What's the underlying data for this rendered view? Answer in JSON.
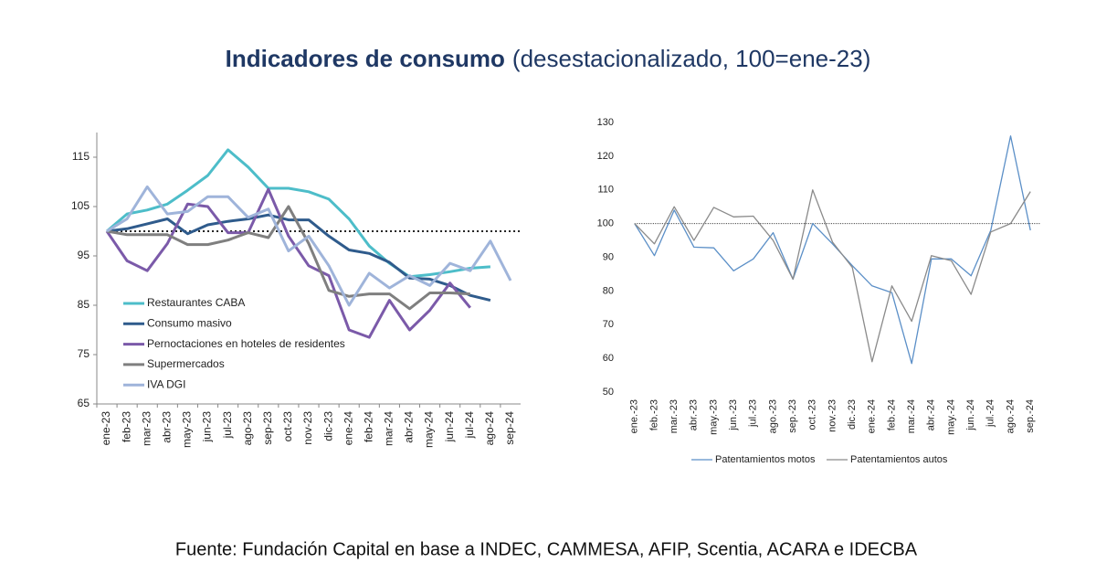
{
  "header": {
    "title": "Indicadores de consumo",
    "subtitle": "(desestacionalizado, 100=ene-23)"
  },
  "source": "Fuente: Fundación Capital en base a INDEC, CAMMESA, AFIP, Scentia, ACARA e IDECBA",
  "chart_data": [
    {
      "type": "line",
      "categories": [
        "ene-23",
        "feb-23",
        "mar-23",
        "abr-23",
        "may-23",
        "jun-23",
        "jul-23",
        "ago-23",
        "sep-23",
        "oct-23",
        "nov-23",
        "dic-23",
        "ene-24",
        "feb-24",
        "mar-24",
        "abr-24",
        "may-24",
        "jun-24",
        "jul-24",
        "ago-24",
        "sep-24"
      ],
      "series": [
        {
          "name": "Restaurantes CABA",
          "color": "#4dbdc9",
          "values": [
            100,
            103.5,
            104.3,
            105.5,
            108.3,
            111.3,
            116.5,
            113,
            108.7,
            108.7,
            108,
            106.5,
            102.5,
            97,
            93.5,
            90.8,
            91.2,
            91.8,
            92.5,
            92.8,
            null
          ]
        },
        {
          "name": "Consumo masivo",
          "color": "#2f5b8c",
          "values": [
            100,
            100.5,
            101.5,
            102.5,
            99.5,
            101.3,
            102,
            102.5,
            103.3,
            102.3,
            102.3,
            99,
            96.2,
            95.5,
            93.7,
            90.5,
            90.3,
            89,
            87,
            86,
            null
          ]
        },
        {
          "name": "Pernoctaciones en hoteles de residentes",
          "color": "#7b5aa9",
          "values": [
            100,
            94,
            92,
            97.5,
            105.5,
            105,
            99.7,
            99.7,
            108.5,
            99,
            93,
            91,
            80,
            78.5,
            86,
            80,
            84,
            89.5,
            84.5,
            null,
            null
          ]
        },
        {
          "name": "Supermercados",
          "color": "#7f7f7f",
          "values": [
            100,
            99.3,
            99.3,
            99.3,
            97.3,
            97.3,
            98.2,
            99.7,
            98.7,
            105,
            97.5,
            88,
            86.8,
            87.3,
            87.3,
            84.3,
            87.5,
            87.5,
            87.3,
            null,
            null
          ]
        },
        {
          "name": "IVA DGI",
          "color": "#9fb4da",
          "values": [
            100,
            102.5,
            109,
            103.5,
            104,
            107,
            107,
            102.8,
            104.5,
            96,
            99,
            93,
            85,
            91.5,
            88.5,
            91,
            89,
            93.5,
            92,
            98,
            90
          ]
        }
      ],
      "reference_line": 100,
      "ylim": [
        65,
        120
      ],
      "yticks": [
        65,
        75,
        85,
        95,
        105,
        115
      ],
      "legend": "lower left"
    },
    {
      "type": "line",
      "categories": [
        "ene.-23",
        "feb.-23",
        "mar.-23",
        "abr.-23",
        "may.-23",
        "jun.-23",
        "jul.-23",
        "ago.-23",
        "sep.-23",
        "oct.-23",
        "nov.-23",
        "dic.-23",
        "ene.-24",
        "feb.-24",
        "mar.-24",
        "abr.-24",
        "may.-24",
        "jun.-24",
        "jul.-24",
        "ago.-24",
        "sep.-24"
      ],
      "series": [
        {
          "name": "Patentamientos motos",
          "color": "#5b8fc7",
          "values": [
            100,
            90.5,
            104,
            93,
            92.8,
            86,
            89.5,
            97.3,
            83.5,
            100,
            94,
            87.5,
            81.5,
            79.5,
            58.5,
            89.5,
            89.5,
            84.5,
            98,
            126,
            98
          ]
        },
        {
          "name": "Patentamientos autos",
          "color": "#8a8a8a",
          "values": [
            100,
            94,
            105,
            95,
            104.8,
            102,
            102.2,
            95,
            83.5,
            110,
            94.5,
            87,
            59,
            81.5,
            71,
            90.5,
            89,
            79,
            97.5,
            100,
            109.5
          ]
        }
      ],
      "reference_line": 100,
      "ylim": [
        50,
        130
      ],
      "yticks": [
        50,
        60,
        70,
        80,
        90,
        100,
        110,
        120,
        130
      ],
      "legend": "bottom"
    }
  ]
}
